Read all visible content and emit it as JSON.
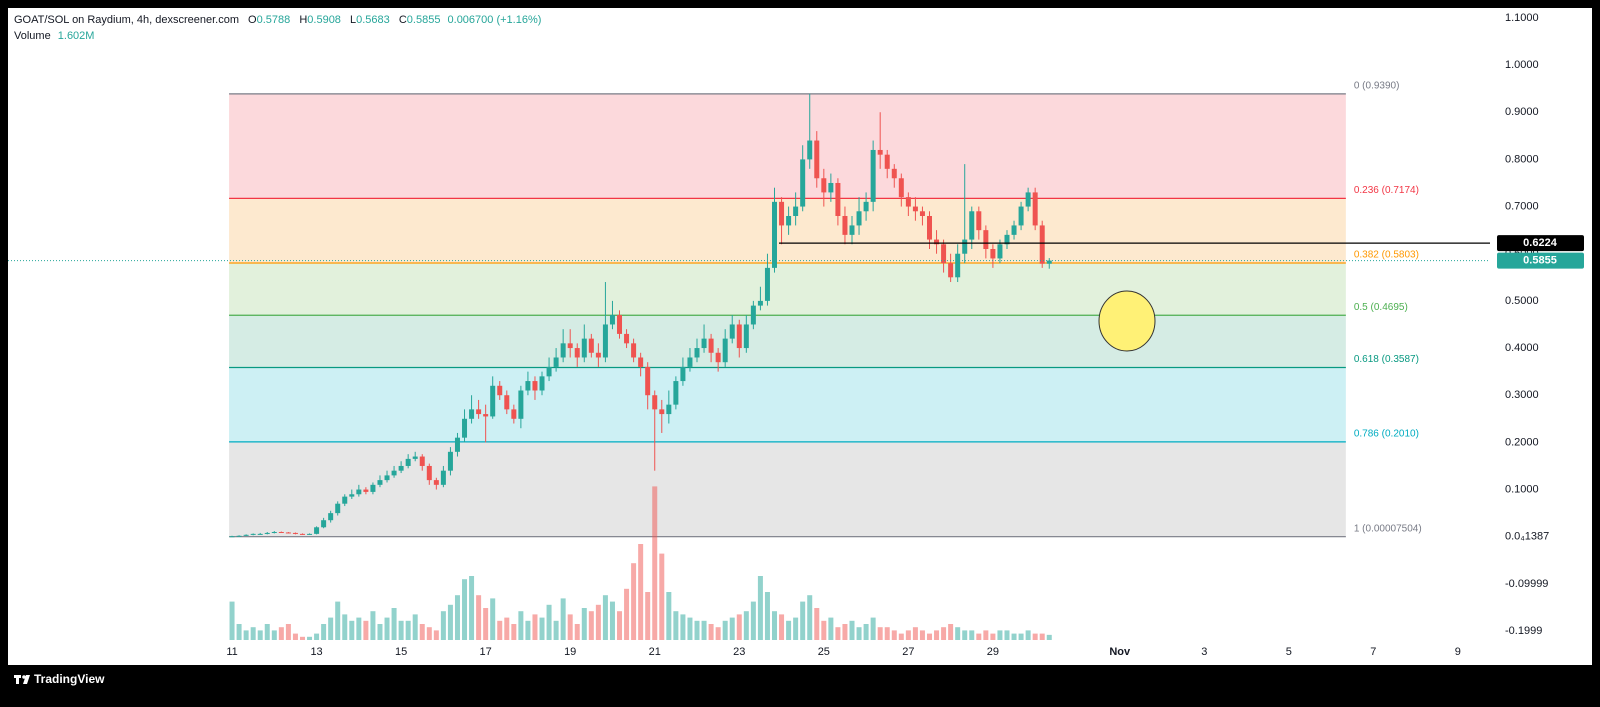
{
  "chart_data": {
    "type": "candlestick",
    "header": {
      "symbol": "GOAT/SOL on Raydium, 4h, dexscreener.com",
      "keys": [
        "O",
        "H",
        "L",
        "C"
      ],
      "change": "0.006700 (+1.16%)",
      "volume_label": "Volume",
      "volume_value": "1.602M"
    },
    "up_color": "#26a69a",
    "down_color": "#ef5350",
    "xlim": [
      5.7,
      40.76
    ],
    "ylim": [
      -0.219,
      1.121
    ],
    "volume_ylim": [
      0,
      50
    ],
    "grid": false,
    "xticks": [
      11,
      13,
      15,
      17,
      19,
      21,
      23,
      25,
      27,
      29,
      {
        "value": 32,
        "label": "Nov"
      },
      {
        "value": 34,
        "label": "3"
      },
      {
        "value": 36,
        "label": "5"
      },
      {
        "value": 38,
        "label": "7"
      },
      {
        "value": 40,
        "label": "9"
      }
    ],
    "yticks": [
      {
        "value": 1.1,
        "label": "1.1000"
      },
      {
        "value": 1,
        "label": "1.0000"
      },
      {
        "value": 0.9,
        "label": "0.9000"
      },
      {
        "value": 0.8,
        "label": "0.8000"
      },
      {
        "value": 0.7,
        "label": "0.7000"
      },
      {
        "value": 0.6,
        "label": "0.6000"
      },
      {
        "value": 0.5,
        "label": "0.5000"
      },
      {
        "value": 0.4,
        "label": "0.4000"
      },
      {
        "value": 0.3,
        "label": "0.3000"
      },
      {
        "value": 0.2,
        "label": "0.2000"
      },
      {
        "value": 0.1,
        "label": "0.1000"
      },
      {
        "value": 1.387e-05,
        "label": "0.0₄1387"
      },
      -0.09999,
      -0.1999
    ],
    "fib": {
      "x": [
        10.93,
        37.35
      ],
      "levels": [
        {
          "label": "0 (0.9390)",
          "price": 0.939,
          "color": "#787b86",
          "fill": "#fcd9dc"
        },
        {
          "label": "0.236 (0.7174)",
          "price": 0.7174,
          "color": "#f23645",
          "fill": "#fde9cf"
        },
        {
          "label": "0.382 (0.5803)",
          "price": 0.5803,
          "color": "#ff9800",
          "fill": "#e2f1dc"
        },
        {
          "label": "0.5 (0.4695)",
          "price": 0.4695,
          "color": "#4caf50",
          "fill": "#d5ece4"
        },
        {
          "label": "0.618 (0.3587)",
          "price": 0.3587,
          "color": "#089981",
          "fill": "#cdf0f4"
        },
        {
          "label": "0.786 (0.2010)",
          "price": 0.201,
          "color": "#00acc1",
          "fill": "#e6e6e6"
        },
        {
          "label": "1 (0.00007504)",
          "price": 7.504e-05,
          "color": "#787b86",
          "fill": null
        }
      ]
    },
    "hline": {
      "value": 0.6224,
      "from": 23.94
    },
    "x": [
      11,
      11.1667,
      11.3333,
      11.5,
      11.6667,
      11.8333,
      12,
      12.1667,
      12.3333,
      12.5,
      12.6667,
      12.8333,
      13,
      13.1667,
      13.3333,
      13.5,
      13.6667,
      13.8333,
      14,
      14.1667,
      14.3333,
      14.5,
      14.6667,
      14.8333,
      15,
      15.1667,
      15.3333,
      15.5,
      15.6667,
      15.8333,
      16,
      16.1667,
      16.3333,
      16.5,
      16.6667,
      16.8333,
      17,
      17.1667,
      17.3333,
      17.5,
      17.6667,
      17.8333,
      18,
      18.1667,
      18.3333,
      18.5,
      18.6667,
      18.8333,
      19,
      19.1667,
      19.3333,
      19.5,
      19.6667,
      19.8333,
      20,
      20.1667,
      20.3333,
      20.5,
      20.6667,
      20.8333,
      21,
      21.1667,
      21.3333,
      21.5,
      21.6667,
      21.8333,
      22,
      22.1667,
      22.3333,
      22.5,
      22.6667,
      22.8333,
      23,
      23.1667,
      23.3333,
      23.5,
      23.6667,
      23.8333,
      24,
      24.1667,
      24.3333,
      24.5,
      24.6667,
      24.8333,
      25,
      25.1667,
      25.3333,
      25.5,
      25.6667,
      25.8333,
      26,
      26.1667,
      26.3333,
      26.5,
      26.6667,
      26.8333,
      27,
      27.1667,
      27.3333,
      27.5,
      27.6667,
      27.8333,
      28,
      28.1667,
      28.3333,
      28.5,
      28.6667,
      28.8333,
      29,
      29.1667,
      29.3333,
      29.5,
      29.6667,
      29.8333,
      30,
      30.1667,
      30.3333
    ],
    "open": [
      0.0008,
      0.001,
      0.002,
      0.004,
      0.006,
      0.006,
      0.008,
      0.01,
      0.009,
      0.008,
      0.006,
      0.005,
      0.006,
      0.02,
      0.035,
      0.05,
      0.07,
      0.085,
      0.09,
      0.1,
      0.095,
      0.11,
      0.12,
      0.13,
      0.14,
      0.15,
      0.165,
      0.17,
      0.15,
      0.12,
      0.11,
      0.14,
      0.18,
      0.21,
      0.25,
      0.27,
      0.26,
      0.255,
      0.32,
      0.3,
      0.27,
      0.25,
      0.31,
      0.33,
      0.31,
      0.34,
      0.36,
      0.38,
      0.41,
      0.4,
      0.38,
      0.42,
      0.39,
      0.38,
      0.45,
      0.47,
      0.43,
      0.41,
      0.38,
      0.36,
      0.3,
      0.27,
      0.26,
      0.28,
      0.33,
      0.36,
      0.38,
      0.4,
      0.42,
      0.39,
      0.37,
      0.42,
      0.45,
      0.4,
      0.45,
      0.49,
      0.5,
      0.57,
      0.71,
      0.66,
      0.68,
      0.7,
      0.8,
      0.84,
      0.76,
      0.73,
      0.75,
      0.68,
      0.64,
      0.66,
      0.69,
      0.71,
      0.82,
      0.81,
      0.78,
      0.76,
      0.72,
      0.7,
      0.69,
      0.68,
      0.63,
      0.62,
      0.58,
      0.55,
      0.6,
      0.63,
      0.69,
      0.65,
      0.61,
      0.59,
      0.62,
      0.64,
      0.66,
      0.7,
      0.73,
      0.66,
      0.5788
    ],
    "high": [
      0.002,
      0.003,
      0.005,
      0.007,
      0.008,
      0.01,
      0.012,
      0.011,
      0.01,
      0.009,
      0.007,
      0.007,
      0.022,
      0.04,
      0.055,
      0.075,
      0.09,
      0.1,
      0.11,
      0.105,
      0.115,
      0.13,
      0.14,
      0.15,
      0.16,
      0.175,
      0.18,
      0.175,
      0.155,
      0.125,
      0.15,
      0.19,
      0.22,
      0.27,
      0.3,
      0.29,
      0.28,
      0.34,
      0.33,
      0.31,
      0.28,
      0.32,
      0.35,
      0.34,
      0.35,
      0.38,
      0.4,
      0.44,
      0.44,
      0.41,
      0.45,
      0.43,
      0.41,
      0.54,
      0.5,
      0.48,
      0.44,
      0.42,
      0.39,
      0.37,
      0.31,
      0.29,
      0.31,
      0.34,
      0.38,
      0.4,
      0.42,
      0.45,
      0.43,
      0.4,
      0.44,
      0.47,
      0.46,
      0.47,
      0.5,
      0.53,
      0.6,
      0.74,
      0.72,
      0.7,
      0.73,
      0.83,
      0.939,
      0.86,
      0.78,
      0.77,
      0.76,
      0.7,
      0.68,
      0.72,
      0.73,
      0.84,
      0.9,
      0.82,
      0.79,
      0.77,
      0.73,
      0.72,
      0.7,
      0.69,
      0.65,
      0.63,
      0.6,
      0.62,
      0.79,
      0.7,
      0.7,
      0.66,
      0.62,
      0.63,
      0.65,
      0.67,
      0.71,
      0.74,
      0.74,
      0.67,
      0.5908
    ],
    "low": [
      0.0005,
      0.0008,
      0.0015,
      0.003,
      0.005,
      0.005,
      0.007,
      0.008,
      0.007,
      0.005,
      0.004,
      0.004,
      0.005,
      0.018,
      0.03,
      0.045,
      0.065,
      0.08,
      0.085,
      0.09,
      0.09,
      0.105,
      0.115,
      0.125,
      0.135,
      0.145,
      0.16,
      0.14,
      0.11,
      0.1,
      0.105,
      0.13,
      0.17,
      0.2,
      0.24,
      0.25,
      0.2,
      0.25,
      0.29,
      0.26,
      0.24,
      0.23,
      0.3,
      0.29,
      0.3,
      0.33,
      0.35,
      0.37,
      0.38,
      0.36,
      0.37,
      0.38,
      0.36,
      0.37,
      0.44,
      0.42,
      0.4,
      0.37,
      0.34,
      0.27,
      0.14,
      0.22,
      0.24,
      0.27,
      0.32,
      0.35,
      0.37,
      0.39,
      0.37,
      0.35,
      0.36,
      0.41,
      0.38,
      0.39,
      0.44,
      0.48,
      0.49,
      0.56,
      0.62,
      0.64,
      0.66,
      0.69,
      0.78,
      0.74,
      0.7,
      0.71,
      0.66,
      0.62,
      0.62,
      0.64,
      0.67,
      0.69,
      0.78,
      0.76,
      0.74,
      0.7,
      0.68,
      0.67,
      0.66,
      0.61,
      0.6,
      0.56,
      0.54,
      0.54,
      0.58,
      0.61,
      0.63,
      0.59,
      0.57,
      0.58,
      0.61,
      0.63,
      0.65,
      0.69,
      0.65,
      0.57,
      0.5683
    ],
    "close": [
      0.001,
      0.002,
      0.004,
      0.006,
      0.006,
      0.008,
      0.01,
      0.009,
      0.008,
      0.006,
      0.005,
      0.006,
      0.02,
      0.035,
      0.05,
      0.07,
      0.085,
      0.09,
      0.1,
      0.095,
      0.11,
      0.12,
      0.13,
      0.14,
      0.15,
      0.165,
      0.17,
      0.15,
      0.12,
      0.11,
      0.14,
      0.18,
      0.21,
      0.25,
      0.27,
      0.26,
      0.255,
      0.32,
      0.3,
      0.27,
      0.25,
      0.31,
      0.33,
      0.31,
      0.34,
      0.36,
      0.38,
      0.41,
      0.4,
      0.38,
      0.42,
      0.39,
      0.38,
      0.45,
      0.47,
      0.43,
      0.41,
      0.38,
      0.36,
      0.3,
      0.27,
      0.26,
      0.28,
      0.33,
      0.36,
      0.38,
      0.4,
      0.42,
      0.39,
      0.37,
      0.42,
      0.45,
      0.4,
      0.45,
      0.49,
      0.5,
      0.57,
      0.71,
      0.66,
      0.68,
      0.7,
      0.8,
      0.84,
      0.76,
      0.73,
      0.75,
      0.68,
      0.64,
      0.66,
      0.69,
      0.71,
      0.82,
      0.81,
      0.78,
      0.76,
      0.72,
      0.7,
      0.69,
      0.68,
      0.63,
      0.62,
      0.58,
      0.55,
      0.6,
      0.63,
      0.69,
      0.65,
      0.61,
      0.59,
      0.62,
      0.64,
      0.66,
      0.7,
      0.73,
      0.66,
      0.5788,
      0.5855
    ],
    "volume": [
      12,
      5,
      3,
      4,
      3,
      5,
      3,
      4,
      5,
      2,
      1,
      1,
      2,
      5,
      7,
      12,
      8,
      6,
      7,
      6,
      9,
      5,
      7,
      10,
      6,
      6,
      8,
      5,
      4,
      3,
      9,
      11,
      14,
      19,
      20,
      14,
      10,
      13,
      6,
      7,
      5,
      9,
      6,
      8,
      7,
      11,
      6,
      13,
      8,
      5,
      10,
      9,
      11,
      14,
      12,
      9,
      16,
      24,
      30,
      15,
      48,
      27,
      15,
      9,
      8,
      7,
      6,
      6,
      5,
      4,
      6,
      7,
      8,
      9,
      12,
      20,
      15,
      9,
      8,
      6,
      7,
      12,
      14,
      10,
      6,
      7,
      4,
      5,
      6,
      4,
      5,
      7,
      4,
      4,
      3,
      2,
      3,
      4,
      3,
      2,
      3,
      4,
      5,
      4,
      3,
      3,
      2,
      3,
      2,
      3,
      3,
      2,
      2,
      3,
      2,
      2,
      1.602
    ]
  },
  "footer": {
    "brand": "TradingView"
  }
}
